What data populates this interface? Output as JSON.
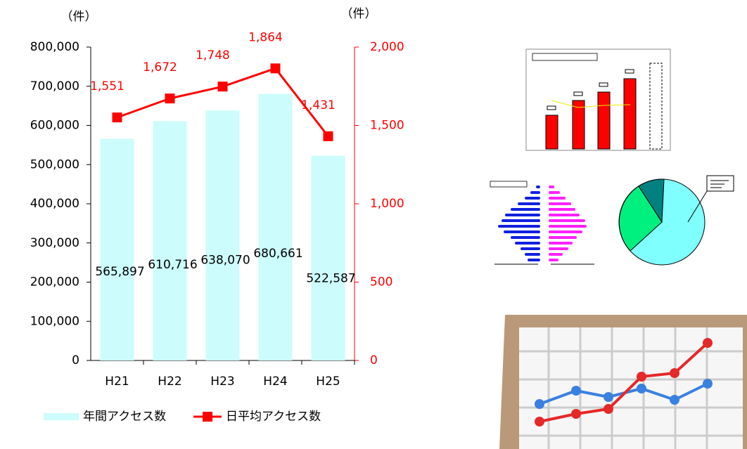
{
  "chart_data": {
    "type": "bar-line",
    "y_unit_label": "（件）",
    "y2_unit_label": "（件）",
    "categories": [
      "H21",
      "H22",
      "H23",
      "H24",
      "H25"
    ],
    "series": [
      {
        "name": "年間アクセス数",
        "type": "bar",
        "color": "#ccfcfc",
        "values": [
          565897,
          610716,
          638070,
          680661,
          522587
        ],
        "value_labels": [
          "565,897",
          "610,716",
          "638,070",
          "680,661",
          "522,587"
        ]
      },
      {
        "name": "日平均アクセス数",
        "type": "line",
        "axis": "y2",
        "color": "#ff0000",
        "values": [
          1551,
          1672,
          1748,
          1864,
          1431
        ],
        "value_labels": [
          "1,551",
          "1,672",
          "1,748",
          "1,864",
          "1,431"
        ]
      }
    ],
    "ylim": [
      0,
      800000
    ],
    "yticks": [
      0,
      {
        "value": 100000,
        "label": "100,000"
      },
      {
        "value": 200000,
        "label": "200,000"
      },
      {
        "value": 300000,
        "label": "300,000"
      },
      {
        "value": 400000,
        "label": "400,000"
      },
      {
        "value": 500000,
        "label": "500,000"
      },
      {
        "value": 600000,
        "label": "600,000"
      },
      {
        "value": 700000,
        "label": "700,000"
      },
      {
        "value": 800000,
        "label": "800,000"
      }
    ],
    "y2lim": [
      0,
      2000
    ],
    "y2ticks": [
      0,
      500,
      {
        "value": 1000,
        "label": "1,000"
      },
      {
        "value": 1500,
        "label": "1,500"
      },
      {
        "value": 2000,
        "label": "2,000"
      }
    ],
    "y2_color": "#ff0000",
    "legend": "bottom"
  }
}
